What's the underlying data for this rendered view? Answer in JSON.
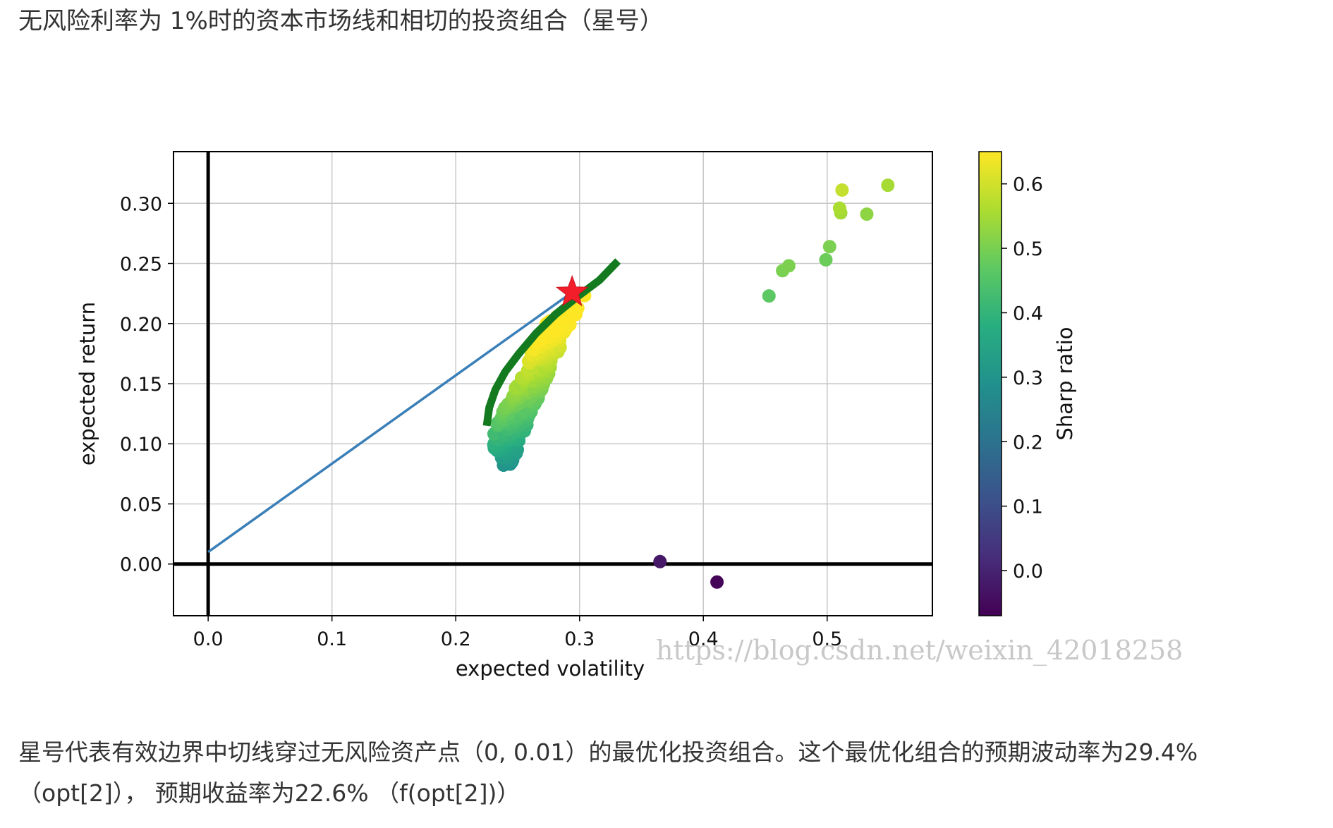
{
  "heading": "无风险利率为 1%时的资本市场线和相切的投资组合（星号）",
  "caption": "星号代表有效边界中切线穿过无风险资产点（0, 0.01）的最优化投资组合。这个最优化组合的预期波动率为29.4% （opt[2]）， 预期收益率为22.6% （f(opt[2])）",
  "watermark": "https://blog.csdn.net/weixin_42018258",
  "colors": {
    "frontier": "#137a1f",
    "cml": "#3a7fb8",
    "star": "#f21f2a",
    "axis": "#000000",
    "grid": "#c8c8c8"
  },
  "chart_data": {
    "type": "scatter",
    "xlabel": "expected volatility",
    "ylabel": "expected return",
    "xlim": [
      -0.028,
      0.585
    ],
    "ylim": [
      -0.043,
      0.343
    ],
    "xticks": [
      "0.0",
      "0.1",
      "0.2",
      "0.3",
      "0.4",
      "0.5"
    ],
    "yticks": [
      "0.00",
      "0.05",
      "0.10",
      "0.15",
      "0.20",
      "0.25",
      "0.30"
    ],
    "grid": true,
    "colorbar": {
      "label": "Sharp ratio",
      "range": [
        -0.07,
        0.65
      ],
      "ticks": [
        "0.0",
        "0.1",
        "0.2",
        "0.3",
        "0.4",
        "0.5",
        "0.6"
      ],
      "colormap": "viridis"
    },
    "portfolios": {
      "n_points": 1900,
      "volatility_range": [
        0.23,
        0.55
      ],
      "return_range": [
        -0.015,
        0.315
      ],
      "outliers": [
        {
          "x": 0.549,
          "y": 0.315
        },
        {
          "x": 0.512,
          "y": 0.311
        },
        {
          "x": 0.51,
          "y": 0.296
        },
        {
          "x": 0.511,
          "y": 0.292
        },
        {
          "x": 0.532,
          "y": 0.291
        },
        {
          "x": 0.502,
          "y": 0.264
        },
        {
          "x": 0.499,
          "y": 0.253
        },
        {
          "x": 0.469,
          "y": 0.248
        },
        {
          "x": 0.464,
          "y": 0.244
        },
        {
          "x": 0.453,
          "y": 0.223
        },
        {
          "x": 0.411,
          "y": -0.015
        },
        {
          "x": 0.231,
          "y": 0.1
        },
        {
          "x": 0.365,
          "y": 0.002
        }
      ]
    },
    "efficient_frontier": [
      {
        "x": 0.225,
        "y": 0.115
      },
      {
        "x": 0.227,
        "y": 0.13
      },
      {
        "x": 0.232,
        "y": 0.145
      },
      {
        "x": 0.24,
        "y": 0.16
      },
      {
        "x": 0.251,
        "y": 0.175
      },
      {
        "x": 0.265,
        "y": 0.192
      },
      {
        "x": 0.281,
        "y": 0.208
      },
      {
        "x": 0.299,
        "y": 0.223
      },
      {
        "x": 0.316,
        "y": 0.236
      },
      {
        "x": 0.331,
        "y": 0.252
      }
    ],
    "capital_market_line": [
      {
        "x": 0.0,
        "y": 0.01
      },
      {
        "x": 0.294,
        "y": 0.226
      }
    ],
    "tangent_portfolio": {
      "x": 0.294,
      "y": 0.226
    }
  }
}
